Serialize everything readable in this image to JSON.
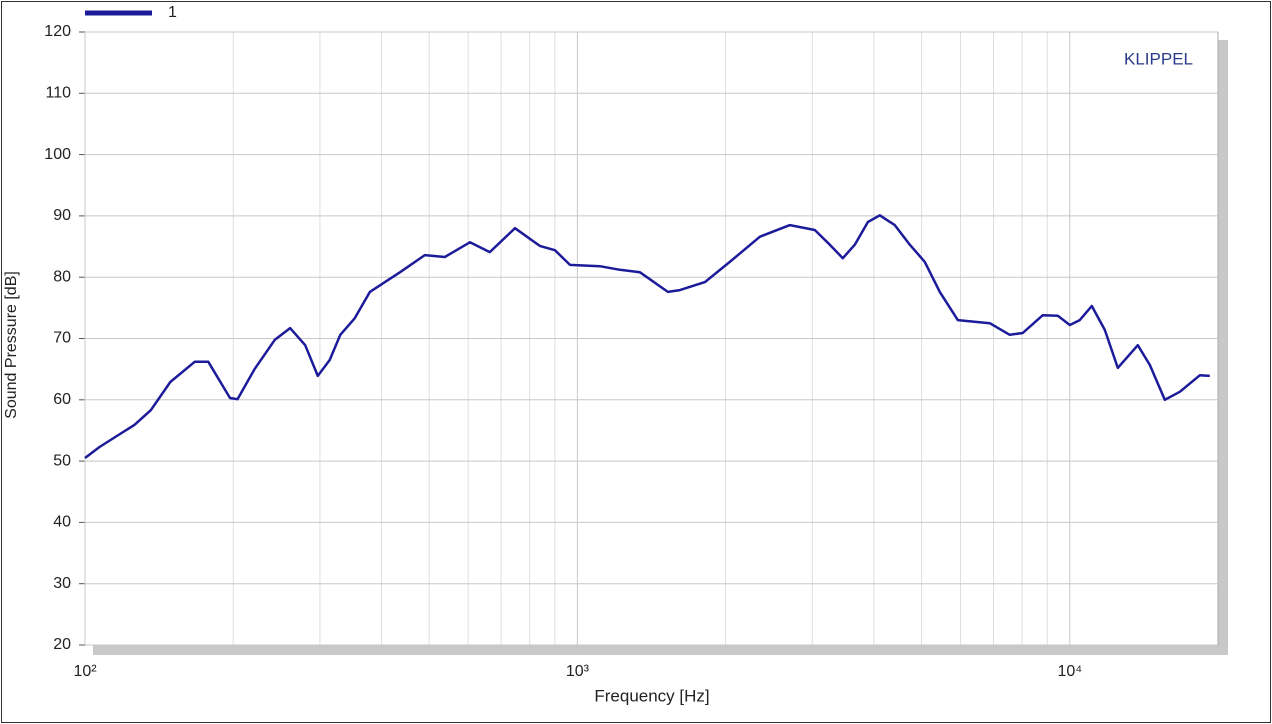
{
  "chart_data": {
    "type": "line",
    "annotation": "KLIPPEL",
    "xlabel": "Frequency  [Hz]",
    "ylabel": "Sound Pressure  [dB]",
    "x_scale": "log",
    "grid": true,
    "legend": "top-left",
    "xlim": [
      100,
      20000
    ],
    "xticks": [
      {
        "value": 100,
        "label": "10²"
      },
      {
        "value": 1000,
        "label": "10³"
      },
      {
        "value": 10000,
        "label": "10⁴"
      }
    ],
    "ylim": [
      20,
      120
    ],
    "yticks": [
      20,
      30,
      40,
      50,
      60,
      70,
      80,
      90,
      100,
      110,
      120
    ],
    "x": [
      100,
      107,
      126,
      136,
      149,
      167,
      178,
      197,
      204,
      221,
      243,
      261,
      280,
      297,
      314,
      330,
      353,
      379,
      436,
      490,
      538,
      605,
      664,
      747,
      839,
      900,
      966,
      1111,
      1220,
      1340,
      1527,
      1615,
      1815,
      2040,
      2348,
      2701,
      3035,
      3256,
      3459,
      3660,
      3890,
      4114,
      4413,
      4733,
      5076,
      5445,
      5924,
      6879,
      7552,
      8025,
      8815,
      9454,
      10000,
      10478,
      11084,
      11779,
      12516,
      13743,
      14537,
      15596,
      16728,
      18365,
      19249
    ],
    "series": [
      {
        "name": "1",
        "color": "#1c1c9a",
        "values": [
          50.5,
          52.3,
          55.9,
          58.3,
          62.9,
          66.2,
          66.2,
          60.3,
          60.1,
          65.0,
          69.8,
          71.7,
          68.9,
          63.9,
          66.5,
          70.6,
          73.3,
          77.6,
          80.8,
          83.6,
          83.3,
          85.7,
          84.1,
          88.0,
          85.1,
          84.4,
          82.0,
          81.8,
          81.2,
          80.8,
          77.6,
          77.9,
          79.2,
          82.5,
          86.6,
          88.5,
          87.7,
          85.3,
          83.1,
          85.3,
          89.0,
          90.1,
          88.5,
          85.3,
          82.5,
          77.6,
          73.0,
          72.5,
          70.6,
          70.9,
          73.8,
          73.7,
          72.2,
          73.0,
          75.3,
          71.4,
          65.2,
          68.9,
          65.7,
          60.0,
          61.3,
          64.0,
          63.9
        ]
      }
    ]
  }
}
